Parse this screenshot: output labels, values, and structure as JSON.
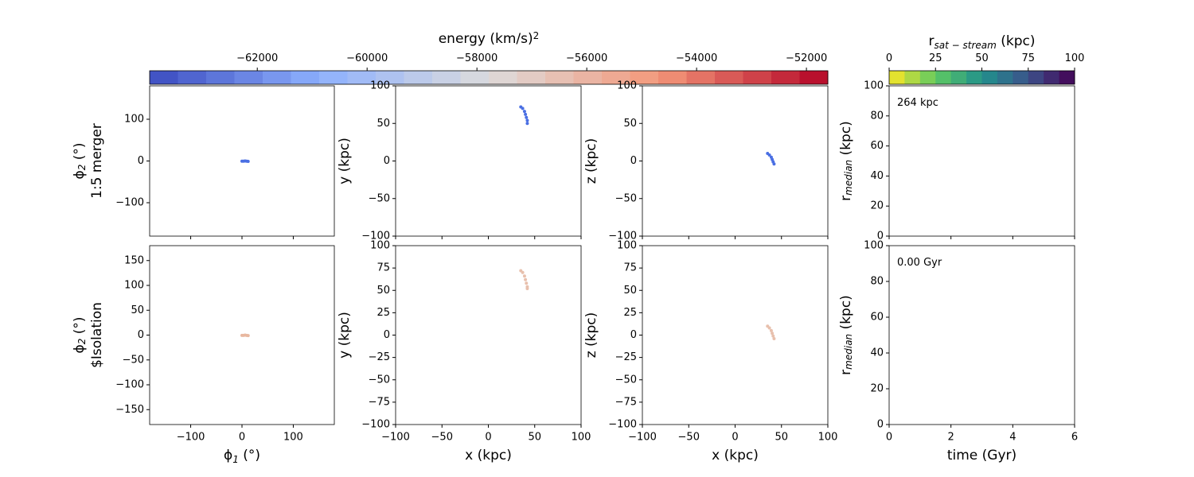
{
  "chart_data": [
    {
      "type": "colorbar",
      "label": [
        {
          "text": "energy (km/s)"
        },
        {
          "sup": "2"
        }
      ],
      "xlim": [
        -63960,
        -51610
      ],
      "xticks": [
        {
          "value": -62000,
          "label": "−62000"
        },
        {
          "value": -60000,
          "label": "−60000"
        },
        {
          "value": -58000,
          "label": "−58000"
        },
        {
          "value": -56000,
          "label": "−56000"
        },
        {
          "value": -54000,
          "label": "−54000"
        },
        {
          "value": -52000,
          "label": "−52000"
        }
      ],
      "colors": [
        "#3b4cc0",
        "#8db0fe",
        "#dddcdc",
        "#f4987a",
        "#b40426"
      ]
    },
    {
      "type": "colorbar",
      "label": [
        {
          "text": "r"
        },
        {
          "sub": "sat − stream"
        },
        {
          "text": " (kpc)"
        }
      ],
      "xlim": [
        0,
        100
      ],
      "xticks": [
        0,
        25,
        50,
        75,
        100
      ],
      "colors": [
        "#fde725",
        "#5ec962",
        "#21918c",
        "#3b528b",
        "#440154"
      ]
    },
    {
      "type": "scatter",
      "ylabel": [
        {
          "text": "ϕ"
        },
        {
          "sub": "2"
        },
        {
          "text": " (°)"
        }
      ],
      "ylabel2": "1:5 merger",
      "xlim": [
        -180,
        180
      ],
      "ylim": [
        -180,
        180
      ],
      "xticklabels": false,
      "xticks": [
        {
          "value": -100,
          "label": "−100"
        },
        0,
        100
      ],
      "yticks": [
        {
          "value": -100,
          "label": "−100"
        },
        0,
        100
      ],
      "series": [
        {
          "color": "#4a6fe3",
          "x": [
            0,
            3,
            6,
            9,
            12
          ],
          "values": [
            -0.5,
            -0.5,
            0,
            -0.5,
            -1
          ]
        }
      ]
    },
    {
      "type": "scatter",
      "ylabel": [
        {
          "text": "y (kpc)"
        }
      ],
      "xlim": [
        -100,
        100
      ],
      "ylim": [
        -100,
        100
      ],
      "xticklabels": false,
      "xticks": [
        {
          "value": -100,
          "label": "−100"
        },
        {
          "value": -50,
          "label": "−50"
        },
        0,
        50,
        100
      ],
      "yticks": [
        {
          "value": -100,
          "label": "−100"
        },
        {
          "value": -50,
          "label": "−50"
        },
        0,
        50,
        100
      ],
      "series": [
        {
          "color": "#4a6fe3",
          "x": [
            35,
            37,
            39,
            40,
            41,
            42,
            42
          ],
          "values": [
            72,
            70,
            66,
            62,
            58,
            54,
            50
          ]
        }
      ]
    },
    {
      "type": "scatter",
      "ylabel": [
        {
          "text": "z (kpc)"
        }
      ],
      "xlim": [
        -100,
        100
      ],
      "ylim": [
        -100,
        100
      ],
      "xticklabels": false,
      "xticks": [
        {
          "value": -100,
          "label": "−100"
        },
        {
          "value": -50,
          "label": "−50"
        },
        0,
        50,
        100
      ],
      "yticks": [
        {
          "value": -100,
          "label": "−100"
        },
        {
          "value": -50,
          "label": "−50"
        },
        0,
        50,
        100
      ],
      "series": [
        {
          "color": "#4a6fe3",
          "x": [
            35,
            37,
            39,
            40,
            41,
            42
          ],
          "values": [
            10,
            8,
            5,
            2,
            -1,
            -4
          ]
        }
      ]
    },
    {
      "type": "scatter",
      "ylabel": [
        {
          "text": "r"
        },
        {
          "sub": "median"
        },
        {
          "text": " (kpc)"
        }
      ],
      "annotation": "264 kpc",
      "xlim": [
        0,
        6
      ],
      "ylim": [
        0,
        100
      ],
      "xticklabels": false,
      "xticks": [
        0,
        2,
        4,
        6
      ],
      "yticks": [
        0,
        20,
        40,
        60,
        80,
        100
      ],
      "series": []
    },
    {
      "type": "scatter",
      "ylabel": [
        {
          "text": "ϕ"
        },
        {
          "sub": "2"
        },
        {
          "text": " (°)"
        }
      ],
      "ylabel2": "$Isolation",
      "xlabel": [
        {
          "text": "ϕ"
        },
        {
          "sub": "1"
        },
        {
          "text": " (°)"
        }
      ],
      "xlim": [
        -180,
        180
      ],
      "ylim": [
        -180,
        180
      ],
      "xticklabels": true,
      "xticks": [
        {
          "value": -100,
          "label": "−100"
        },
        0,
        100
      ],
      "yticks": [
        {
          "value": -150,
          "label": "−150"
        },
        {
          "value": -100,
          "label": "−100"
        },
        {
          "value": -50,
          "label": "−50"
        },
        0,
        50,
        100,
        150
      ],
      "series": [
        {
          "color": "#e8b8a0",
          "x": [
            0,
            3,
            6,
            9,
            12
          ],
          "values": [
            -0.5,
            -0.5,
            0,
            -0.5,
            -1
          ]
        }
      ]
    },
    {
      "type": "scatter",
      "ylabel": [
        {
          "text": "y (kpc)"
        }
      ],
      "xlabel": [
        {
          "text": "x (kpc)"
        }
      ],
      "xlim": [
        -100,
        100
      ],
      "ylim": [
        -100,
        100
      ],
      "xticklabels": true,
      "xticks": [
        {
          "value": -100,
          "label": "−100"
        },
        {
          "value": -50,
          "label": "−50"
        },
        0,
        50,
        100
      ],
      "yticks": [
        {
          "value": -100,
          "label": "−100"
        },
        {
          "value": -75,
          "label": "−75"
        },
        {
          "value": -50,
          "label": "−50"
        },
        {
          "value": -25,
          "label": "−25"
        },
        0,
        25,
        50,
        75,
        100
      ],
      "series": [
        {
          "color": "#e8c0ad",
          "x": [
            35,
            37,
            39,
            40,
            41,
            42,
            42
          ],
          "values": [
            72,
            70,
            66,
            62,
            58,
            54,
            52
          ]
        }
      ]
    },
    {
      "type": "scatter",
      "ylabel": [
        {
          "text": "z (kpc)"
        }
      ],
      "xlabel": [
        {
          "text": "x (kpc)"
        }
      ],
      "xlim": [
        -100,
        100
      ],
      "ylim": [
        -100,
        100
      ],
      "xticklabels": true,
      "xticks": [
        {
          "value": -100,
          "label": "−100"
        },
        {
          "value": -50,
          "label": "−50"
        },
        0,
        50,
        100
      ],
      "yticks": [
        {
          "value": -100,
          "label": "−100"
        },
        {
          "value": -75,
          "label": "−75"
        },
        {
          "value": -50,
          "label": "−50"
        },
        {
          "value": -25,
          "label": "−25"
        },
        0,
        25,
        50,
        75,
        100
      ],
      "series": [
        {
          "color": "#e8c0ad",
          "x": [
            35,
            37,
            39,
            40,
            41,
            42
          ],
          "values": [
            10,
            8,
            5,
            2,
            -1,
            -4
          ]
        }
      ]
    },
    {
      "type": "scatter",
      "ylabel": [
        {
          "text": "r"
        },
        {
          "sub": "median"
        },
        {
          "text": " (kpc)"
        }
      ],
      "xlabel": [
        {
          "text": "time (Gyr)"
        }
      ],
      "annotation": "0.00 Gyr",
      "xlim": [
        0,
        6
      ],
      "ylim": [
        0,
        100
      ],
      "xticklabels": true,
      "xticks": [
        0,
        2,
        4,
        6
      ],
      "yticks": [
        0,
        20,
        40,
        60,
        80,
        100
      ],
      "series": []
    }
  ]
}
